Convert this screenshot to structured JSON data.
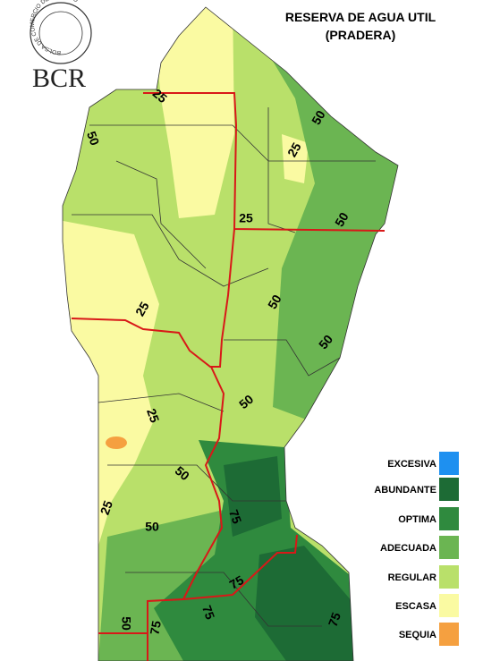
{
  "logo": {
    "ring_text": "BOLSA DE COMERCIO DE ROSARIO",
    "name": "BCR"
  },
  "title": [
    "RESERVA DE AGUA UTIL",
    "(PRADERA)"
  ],
  "legend": [
    {
      "label": "EXCESIVA",
      "color": "#1e90f0"
    },
    {
      "label": "ABUNDANTE",
      "color": "#1d6b35"
    },
    {
      "label": "OPTIMA",
      "color": "#2f8a3e"
    },
    {
      "label": "ADECUADA",
      "color": "#6bb552"
    },
    {
      "label": "REGULAR",
      "color": "#b9e06a"
    },
    {
      "label": "ESCASA",
      "color": "#fafaa2"
    },
    {
      "label": "SEQUIA",
      "color": "#f5a040"
    }
  ],
  "contour_labels": [
    25,
    50,
    50,
    25,
    25,
    50,
    50,
    25,
    50,
    50,
    25,
    50,
    75,
    25,
    50,
    75,
    75,
    50,
    75,
    75
  ]
}
